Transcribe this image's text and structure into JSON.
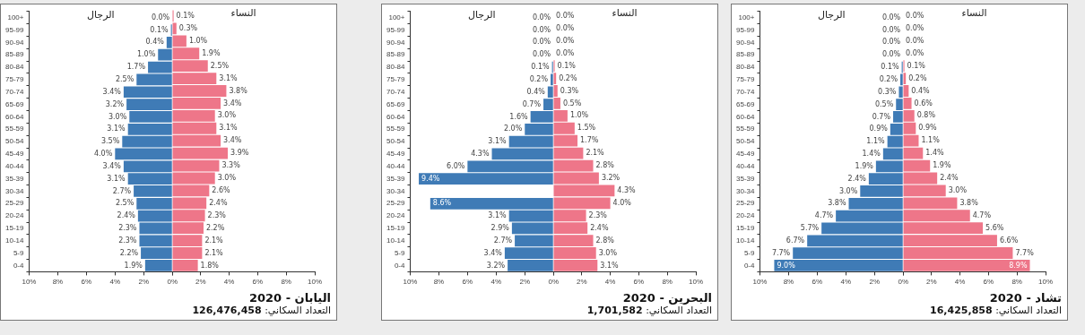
{
  "chart_data": [
    {
      "type": "bar",
      "orientation": "horizontal",
      "categories": [
        "100+",
        "95-99",
        "90-94",
        "85-89",
        "80-84",
        "75-79",
        "70-74",
        "65-69",
        "60-64",
        "55-59",
        "50-54",
        "45-49",
        "40-44",
        "35-39",
        "30-34",
        "25-29",
        "20-24",
        "15-19",
        "10-14",
        "5-9",
        "0-4"
      ],
      "series": [
        {
          "name": "الرجال",
          "color": "#3f7bb6",
          "values": [
            0.0,
            0.1,
            0.4,
            1.0,
            1.7,
            2.5,
            3.4,
            3.2,
            3.0,
            3.1,
            3.5,
            4.0,
            3.4,
            3.1,
            2.7,
            2.5,
            2.4,
            2.3,
            2.3,
            2.2,
            1.9
          ],
          "value_labels": [
            "0.0%",
            "0.1%",
            "0.4%",
            "1.0%",
            "1.7%",
            "2.5%",
            "3.4%",
            "3.2%",
            "3.0%",
            "3.1%",
            "3.5%",
            "4.0%",
            "3.4%",
            "3.1%",
            "2.7%",
            "2.5%",
            "2.4%",
            "2.3%",
            "2.3%",
            "2.2%",
            "1.9%"
          ]
        }
      ],
      "xlim": [
        10,
        0
      ],
      "xticks": [
        {
          "value": 10,
          "label": "10%"
        },
        {
          "value": 8,
          "label": "8%"
        },
        {
          "value": 6,
          "label": "6%"
        },
        {
          "value": 4,
          "label": "4%"
        },
        {
          "value": 2,
          "label": "2%"
        },
        {
          "value": 0,
          "label": "0%"
        }
      ]
    },
    {
      "type": "bar",
      "orientation": "horizontal",
      "title": "اليابان - 2020",
      "subtitle": "التعداد السكاني: 126,476,458",
      "tick_labels": "x",
      "categories": [
        null,
        null,
        null,
        null,
        null,
        null,
        null,
        null,
        null,
        null,
        null,
        null,
        null,
        null,
        null,
        null,
        null,
        null,
        null,
        null,
        null
      ],
      "series": [
        {
          "name": "النساء",
          "color": "#ee7689",
          "values": [
            0.1,
            0.3,
            1.0,
            1.9,
            2.5,
            3.1,
            3.8,
            3.4,
            3.0,
            3.1,
            3.4,
            3.9,
            3.3,
            3.0,
            2.6,
            2.4,
            2.3,
            2.2,
            2.1,
            2.1,
            1.8
          ],
          "value_labels": [
            "0.1%",
            "0.3%",
            "1.0%",
            "1.9%",
            "2.5%",
            "3.1%",
            "3.8%",
            "3.4%",
            "3.0%",
            "3.1%",
            "3.4%",
            "3.9%",
            "3.3%",
            "3.0%",
            "2.6%",
            "2.4%",
            "2.3%",
            "2.2%",
            "2.1%",
            "2.1%",
            "1.8%"
          ]
        }
      ],
      "xlim": [
        0,
        10
      ],
      "xticks": [
        {
          "value": 0,
          "label": null
        },
        {
          "value": 2,
          "label": "2%"
        },
        {
          "value": 4,
          "label": "4%"
        },
        {
          "value": 6,
          "label": "6%"
        },
        {
          "value": 8,
          "label": "8%"
        },
        {
          "value": 10,
          "label": "10%"
        }
      ]
    },
    {
      "type": "bar",
      "orientation": "horizontal",
      "categories": [
        "100+",
        "95-99",
        "90-94",
        "85-89",
        "80-84",
        "75-79",
        "70-74",
        "65-69",
        "60-64",
        "55-59",
        "50-54",
        "45-49",
        "40-44",
        "35-39",
        "30-34",
        "25-29",
        "20-24",
        "15-19",
        "10-14",
        "5-9",
        "0-4"
      ],
      "series": [
        {
          "name": "الرجال",
          "color": "#3f7bb6",
          "values": [
            0.0,
            0.0,
            0.0,
            0.0,
            0.1,
            0.2,
            0.4,
            0.7,
            1.6,
            2.0,
            3.1,
            4.3,
            6.0,
            9.4,
            null,
            8.6,
            3.1,
            2.9,
            2.7,
            3.4,
            3.2
          ],
          "value_labels": [
            "0.0%",
            "0.0%",
            "0.0%",
            "0.0%",
            "0.1%",
            "0.2%",
            "0.4%",
            "0.7%",
            "1.6%",
            "2.0%",
            "3.1%",
            "4.3%",
            "6.0%",
            "9.4%",
            null,
            "8.6%",
            "3.1%",
            "2.9%",
            "2.7%",
            "3.4%",
            "3.2%"
          ]
        }
      ],
      "xlim": [
        10,
        0
      ],
      "xticks": [
        {
          "value": 10,
          "label": "10%"
        },
        {
          "value": 8,
          "label": "8%"
        },
        {
          "value": 6,
          "label": "6%"
        },
        {
          "value": 4,
          "label": "4%"
        },
        {
          "value": 2,
          "label": "2%"
        },
        {
          "value": 0,
          "label": "0%"
        }
      ]
    },
    {
      "type": "bar",
      "orientation": "horizontal",
      "title": "البحرين - 2020",
      "subtitle": "التعداد السكاني: 1,701,582",
      "tick_labels": "x",
      "categories": [
        null,
        null,
        null,
        null,
        null,
        null,
        null,
        null,
        null,
        null,
        null,
        null,
        null,
        null,
        null,
        null,
        null,
        null,
        null,
        null,
        null
      ],
      "series": [
        {
          "name": "النساء",
          "color": "#ee7689",
          "values": [
            0.0,
            0.0,
            0.0,
            0.0,
            0.1,
            0.2,
            0.3,
            0.5,
            1.0,
            1.5,
            1.7,
            2.1,
            2.8,
            3.2,
            4.3,
            4.0,
            2.3,
            2.4,
            2.8,
            3.0,
            3.1
          ],
          "value_labels": [
            "0.0%",
            "0.0%",
            "0.0%",
            "0.0%",
            "0.1%",
            "0.2%",
            "0.3%",
            "0.5%",
            "1.0%",
            "1.5%",
            "1.7%",
            "2.1%",
            "2.8%",
            "3.2%",
            "4.3%",
            "4.0%",
            "2.3%",
            "2.4%",
            "2.8%",
            "3.0%",
            "3.1%"
          ]
        }
      ],
      "xlim": [
        0,
        10
      ],
      "xticks": [
        {
          "value": 0,
          "label": null
        },
        {
          "value": 2,
          "label": "2%"
        },
        {
          "value": 4,
          "label": "4%"
        },
        {
          "value": 6,
          "label": "6%"
        },
        {
          "value": 8,
          "label": "8%"
        },
        {
          "value": 10,
          "label": "10%"
        }
      ]
    },
    {
      "type": "bar",
      "orientation": "horizontal",
      "categories": [
        "100+",
        "95-99",
        "90-94",
        "85-89",
        "80-84",
        "75-79",
        "70-74",
        "65-69",
        "60-64",
        "55-59",
        "50-54",
        "45-49",
        "40-44",
        "35-39",
        "30-34",
        "25-29",
        "20-24",
        "15-19",
        "10-14",
        "5-9",
        "0-4"
      ],
      "series": [
        {
          "name": "الرجال",
          "color": "#3f7bb6",
          "values": [
            0.0,
            0.0,
            0.0,
            0.0,
            0.1,
            0.2,
            0.3,
            0.5,
            0.7,
            0.9,
            1.1,
            1.4,
            1.9,
            2.4,
            3.0,
            3.8,
            4.7,
            5.7,
            6.7,
            7.7,
            9.0
          ],
          "value_labels": [
            "0.0%",
            "0.0%",
            "0.0%",
            "0.0%",
            "0.1%",
            "0.2%",
            "0.3%",
            "0.5%",
            "0.7%",
            "0.9%",
            "1.1%",
            "1.4%",
            "1.9%",
            "2.4%",
            "3.0%",
            "3.8%",
            "4.7%",
            "5.7%",
            "6.7%",
            "7.7%",
            "9.0%"
          ]
        }
      ],
      "xlim": [
        10,
        0
      ],
      "xticks": [
        {
          "value": 10,
          "label": "10%"
        },
        {
          "value": 8,
          "label": "8%"
        },
        {
          "value": 6,
          "label": "6%"
        },
        {
          "value": 4,
          "label": "4%"
        },
        {
          "value": 2,
          "label": "2%"
        },
        {
          "value": 0,
          "label": "0%"
        }
      ]
    },
    {
      "type": "bar",
      "orientation": "horizontal",
      "title": "تشاد - 2020",
      "subtitle": "التعداد السكاني: 16,425,858",
      "tick_labels": "x",
      "categories": [
        null,
        null,
        null,
        null,
        null,
        null,
        null,
        null,
        null,
        null,
        null,
        null,
        null,
        null,
        null,
        null,
        null,
        null,
        null,
        null,
        null
      ],
      "series": [
        {
          "name": "النساء",
          "color": "#ee7689",
          "values": [
            0.0,
            0.0,
            0.0,
            0.0,
            0.1,
            0.2,
            0.4,
            0.6,
            0.8,
            0.9,
            1.1,
            1.4,
            1.9,
            2.4,
            3.0,
            3.8,
            4.7,
            5.6,
            6.6,
            7.7,
            8.9
          ],
          "value_labels": [
            "0.0%",
            "0.0%",
            "0.0%",
            "0.0%",
            "0.1%",
            "0.2%",
            "0.4%",
            "0.6%",
            "0.8%",
            "0.9%",
            "1.1%",
            "1.4%",
            "1.9%",
            "2.4%",
            "3.0%",
            "3.8%",
            "4.7%",
            "5.6%",
            "6.6%",
            "7.7%",
            "8.9%"
          ]
        }
      ],
      "xlim": [
        0,
        10
      ],
      "xticks": [
        {
          "value": 0,
          "label": null
        },
        {
          "value": 2,
          "label": "2%"
        },
        {
          "value": 4,
          "label": "4%"
        },
        {
          "value": 6,
          "label": "6%"
        },
        {
          "value": 8,
          "label": "8%"
        },
        {
          "value": 10,
          "label": "10%"
        }
      ]
    }
  ]
}
